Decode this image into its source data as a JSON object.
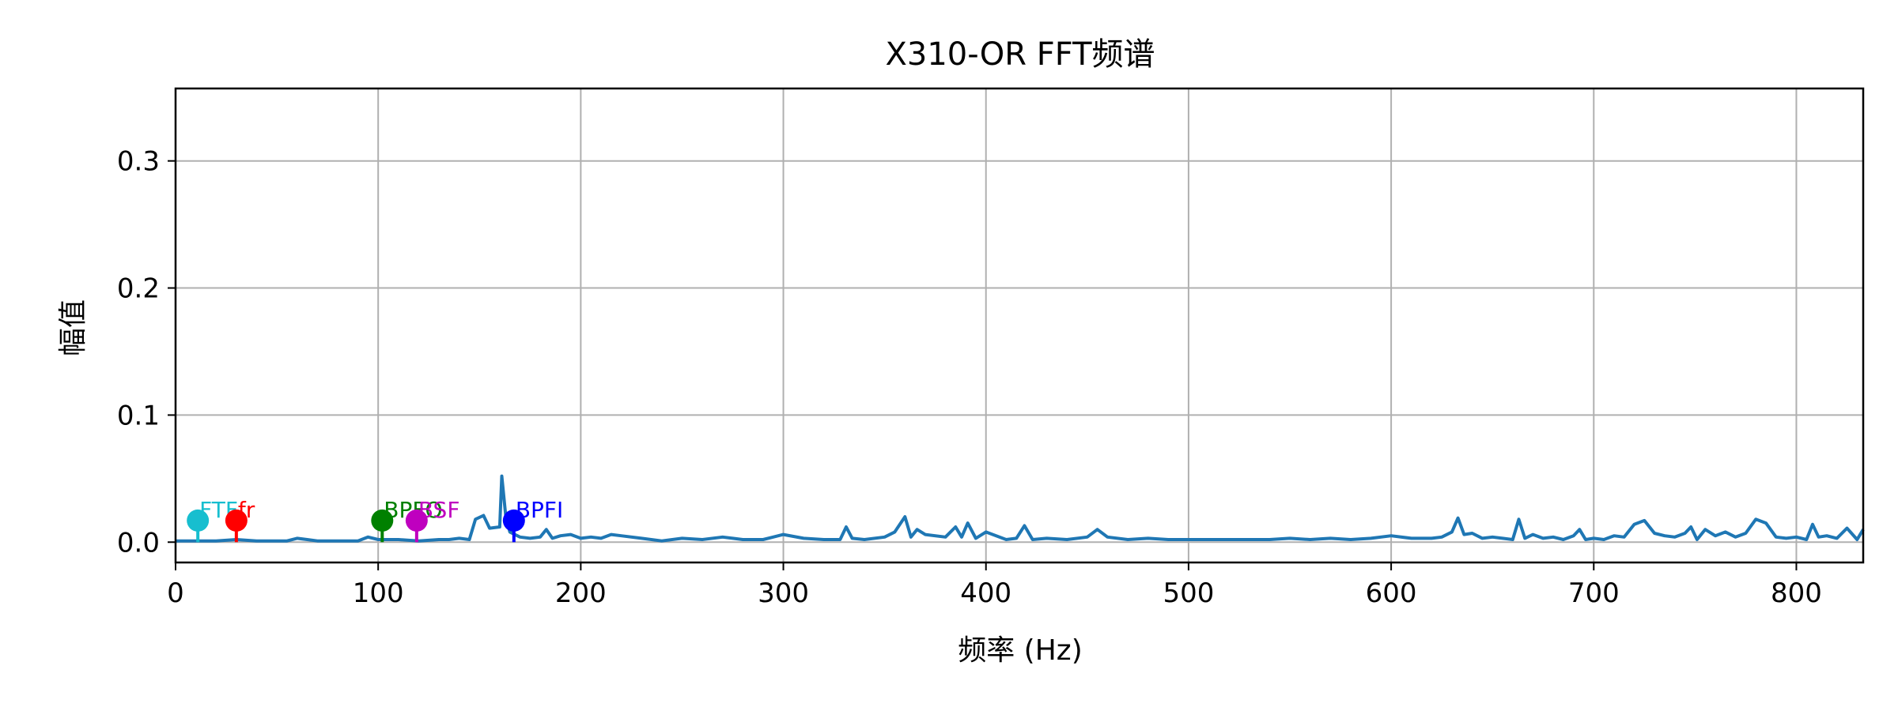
{
  "chart_data": {
    "type": "line",
    "title": "X310-OR FFT频谱",
    "xlabel": "频率 (Hz)",
    "ylabel": "幅值",
    "xlim": [
      0,
      833
    ],
    "ylim": [
      -0.016,
      0.357
    ],
    "xticks": [
      0,
      100,
      200,
      300,
      400,
      500,
      600,
      700,
      800
    ],
    "yticks": [
      0.0,
      0.1,
      0.2,
      0.3
    ],
    "xtick_labels": [
      "0",
      "100",
      "200",
      "300",
      "400",
      "500",
      "600",
      "700",
      "800"
    ],
    "ytick_labels": [
      "0.0",
      "0.1",
      "0.2",
      "0.3"
    ],
    "grid": true,
    "line_color": "#1f77b4",
    "series": [
      {
        "x": [
          0,
          10,
          20,
          30,
          40,
          50,
          55,
          60,
          65,
          70,
          80,
          90,
          95,
          100,
          110,
          120,
          130,
          135,
          140,
          145,
          148,
          152,
          155,
          160,
          161,
          163,
          165,
          170,
          175,
          180,
          183,
          186,
          190,
          195,
          200,
          205,
          210,
          215,
          220,
          230,
          240,
          250,
          260,
          270,
          275,
          280,
          290,
          295,
          300,
          310,
          320,
          328,
          331,
          334,
          340,
          350,
          355,
          360,
          363,
          366,
          370,
          380,
          385,
          388,
          391,
          395,
          400,
          410,
          415,
          419,
          423,
          430,
          440,
          450,
          455,
          460,
          470,
          480,
          490,
          500,
          510,
          520,
          530,
          540,
          550,
          560,
          570,
          580,
          590,
          600,
          610,
          620,
          625,
          630,
          633,
          636,
          640,
          645,
          650,
          655,
          660,
          663,
          666,
          670,
          675,
          680,
          685,
          690,
          693,
          696,
          700,
          705,
          710,
          715,
          720,
          725,
          730,
          735,
          740,
          745,
          748,
          751,
          755,
          760,
          765,
          770,
          775,
          780,
          785,
          790,
          795,
          800,
          805,
          808,
          811,
          815,
          820,
          825,
          830,
          833
        ],
        "y": [
          0.001,
          0.001,
          0.001,
          0.002,
          0.001,
          0.001,
          0.001,
          0.003,
          0.002,
          0.001,
          0.001,
          0.001,
          0.004,
          0.002,
          0.002,
          0.001,
          0.002,
          0.002,
          0.003,
          0.002,
          0.018,
          0.021,
          0.011,
          0.012,
          0.052,
          0.02,
          0.008,
          0.004,
          0.003,
          0.004,
          0.01,
          0.003,
          0.005,
          0.006,
          0.003,
          0.004,
          0.003,
          0.006,
          0.005,
          0.003,
          0.001,
          0.003,
          0.002,
          0.004,
          0.003,
          0.002,
          0.002,
          0.004,
          0.006,
          0.003,
          0.002,
          0.002,
          0.012,
          0.003,
          0.002,
          0.004,
          0.008,
          0.02,
          0.004,
          0.01,
          0.006,
          0.004,
          0.012,
          0.004,
          0.015,
          0.003,
          0.008,
          0.002,
          0.003,
          0.013,
          0.002,
          0.003,
          0.002,
          0.004,
          0.01,
          0.004,
          0.002,
          0.003,
          0.002,
          0.002,
          0.002,
          0.002,
          0.002,
          0.002,
          0.003,
          0.002,
          0.003,
          0.002,
          0.003,
          0.005,
          0.003,
          0.003,
          0.004,
          0.008,
          0.019,
          0.006,
          0.007,
          0.003,
          0.004,
          0.003,
          0.002,
          0.018,
          0.003,
          0.006,
          0.003,
          0.004,
          0.002,
          0.005,
          0.01,
          0.002,
          0.003,
          0.002,
          0.005,
          0.004,
          0.014,
          0.017,
          0.007,
          0.005,
          0.004,
          0.007,
          0.012,
          0.002,
          0.01,
          0.005,
          0.008,
          0.004,
          0.007,
          0.018,
          0.015,
          0.004,
          0.003,
          0.004,
          0.002,
          0.014,
          0.004,
          0.005,
          0.003,
          0.011,
          0.002,
          0.01
        ]
      }
    ],
    "markers": [
      {
        "label": "FTF",
        "x": 11,
        "y": 0.017,
        "color": "#17becf"
      },
      {
        "label": "fr",
        "x": 30,
        "y": 0.017,
        "color": "#ff0000"
      },
      {
        "label": "BPFO",
        "x": 102,
        "y": 0.017,
        "color": "#008000"
      },
      {
        "label": "BSF",
        "x": 119,
        "y": 0.017,
        "color": "#bf00bf"
      },
      {
        "label": "BPFI",
        "x": 167,
        "y": 0.017,
        "color": "#0000ff"
      }
    ]
  }
}
